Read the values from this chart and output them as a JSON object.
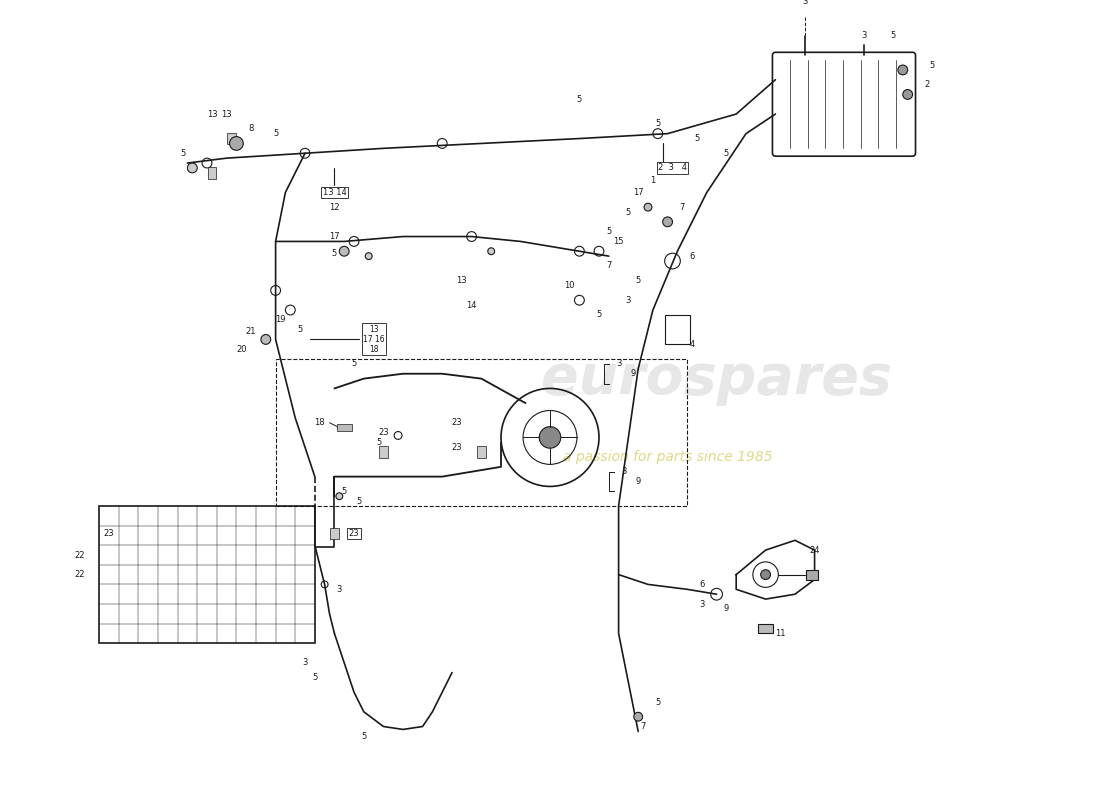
{
  "bg_color": "#ffffff",
  "line_color": "#1a1a1a",
  "watermark1": "eurospares",
  "watermark2": "a passion for parts since 1985",
  "wm_color1": "#c0c0c0",
  "wm_color2": "#d4cc60",
  "figsize": [
    11.0,
    8.0
  ],
  "dpi": 100
}
